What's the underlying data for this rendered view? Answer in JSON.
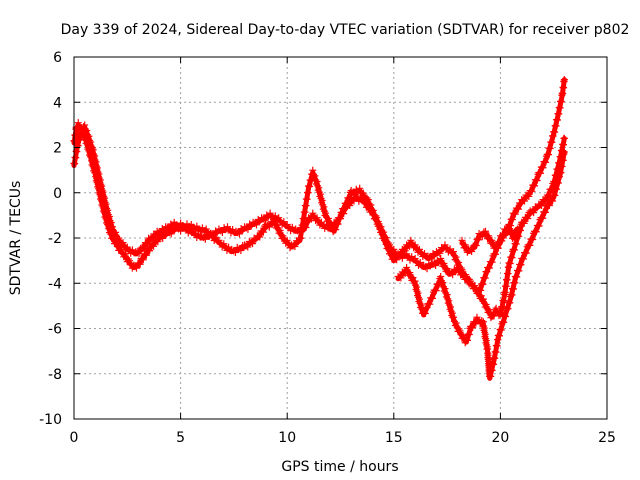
{
  "chart_data": {
    "type": "scatter",
    "title": "Day 339 of 2024, Sidereal Day-to-day VTEC variation (SDTVAR) for receiver p802",
    "xlabel": "GPS time / hours",
    "ylabel": "SDTVAR / TECUs",
    "xlim": [
      0,
      25
    ],
    "ylim": [
      -10,
      6
    ],
    "xticks": [
      0,
      5,
      10,
      15,
      20,
      25
    ],
    "yticks": [
      -10,
      -8,
      -6,
      -4,
      -2,
      0,
      2,
      4,
      6
    ],
    "grid": true,
    "marker": "+",
    "color": "#ff0000",
    "series": [
      {
        "name": "main-track",
        "points": [
          [
            0.0,
            2.2
          ],
          [
            0.1,
            2.8
          ],
          [
            0.2,
            3.0
          ],
          [
            0.4,
            2.7
          ],
          [
            0.6,
            2.2
          ],
          [
            0.8,
            1.5
          ],
          [
            1.0,
            0.8
          ],
          [
            1.2,
            0.0
          ],
          [
            1.4,
            -0.8
          ],
          [
            1.6,
            -1.5
          ],
          [
            1.8,
            -2.0
          ],
          [
            2.0,
            -2.3
          ],
          [
            2.2,
            -2.6
          ],
          [
            2.4,
            -2.8
          ],
          [
            2.6,
            -3.1
          ],
          [
            2.8,
            -3.3
          ],
          [
            3.0,
            -3.2
          ],
          [
            3.3,
            -2.8
          ],
          [
            3.6,
            -2.4
          ],
          [
            4.0,
            -2.0
          ],
          [
            4.4,
            -1.8
          ],
          [
            4.8,
            -1.6
          ],
          [
            5.2,
            -1.6
          ],
          [
            5.6,
            -1.8
          ],
          [
            6.0,
            -2.0
          ],
          [
            6.4,
            -1.9
          ],
          [
            6.8,
            -1.7
          ],
          [
            7.2,
            -1.6
          ],
          [
            7.6,
            -1.8
          ],
          [
            8.0,
            -1.6
          ],
          [
            8.4,
            -1.4
          ],
          [
            8.8,
            -1.2
          ],
          [
            9.2,
            -1.0
          ],
          [
            9.6,
            -1.2
          ],
          [
            10.0,
            -1.5
          ],
          [
            10.4,
            -1.7
          ],
          [
            10.8,
            -1.6
          ],
          [
            11.0,
            -1.2
          ],
          [
            11.2,
            -1.0
          ],
          [
            11.6,
            -1.4
          ],
          [
            12.0,
            -1.6
          ],
          [
            12.4,
            -1.2
          ],
          [
            12.8,
            -0.6
          ],
          [
            13.0,
            -0.4
          ],
          [
            13.2,
            -0.2
          ],
          [
            13.6,
            -0.4
          ],
          [
            14.0,
            -0.9
          ],
          [
            14.4,
            -1.6
          ],
          [
            14.8,
            -2.4
          ],
          [
            15.2,
            -2.8
          ],
          [
            15.6,
            -2.8
          ],
          [
            16.0,
            -3.0
          ],
          [
            16.4,
            -3.3
          ],
          [
            16.8,
            -3.2
          ],
          [
            17.2,
            -3.0
          ],
          [
            17.6,
            -3.6
          ],
          [
            18.0,
            -3.4
          ],
          [
            18.4,
            -3.8
          ],
          [
            18.8,
            -4.2
          ],
          [
            19.2,
            -4.8
          ],
          [
            19.6,
            -5.5
          ],
          [
            19.8,
            -5.2
          ],
          [
            20.0,
            -5.4
          ],
          [
            20.2,
            -4.5
          ],
          [
            20.4,
            -3.2
          ],
          [
            20.6,
            -2.6
          ],
          [
            20.8,
            -2.0
          ],
          [
            21.0,
            -1.4
          ],
          [
            21.4,
            -0.9
          ],
          [
            21.8,
            -0.6
          ],
          [
            22.2,
            -0.2
          ],
          [
            22.5,
            0.4
          ],
          [
            22.8,
            1.5
          ],
          [
            23.0,
            2.4
          ]
        ]
      },
      {
        "name": "upper-track",
        "points": [
          [
            0.0,
            1.2
          ],
          [
            0.15,
            2.0
          ],
          [
            0.3,
            2.6
          ],
          [
            0.5,
            2.9
          ],
          [
            0.7,
            2.4
          ],
          [
            0.9,
            1.8
          ],
          [
            1.1,
            1.0
          ],
          [
            1.3,
            0.2
          ],
          [
            1.5,
            -0.6
          ],
          [
            1.8,
            -1.6
          ],
          [
            2.1,
            -2.1
          ],
          [
            2.5,
            -2.5
          ],
          [
            2.9,
            -2.7
          ],
          [
            3.2,
            -2.5
          ],
          [
            3.5,
            -2.1
          ],
          [
            3.9,
            -1.8
          ],
          [
            4.3,
            -1.6
          ],
          [
            4.7,
            -1.4
          ],
          [
            5.5,
            -1.5
          ],
          [
            6.2,
            -1.7
          ],
          [
            6.8,
            -2.2
          ],
          [
            7.4,
            -2.6
          ],
          [
            8.0,
            -2.4
          ],
          [
            8.6,
            -2.0
          ],
          [
            9.0,
            -1.5
          ],
          [
            9.4,
            -1.3
          ],
          [
            9.8,
            -2.0
          ],
          [
            10.2,
            -2.4
          ],
          [
            10.6,
            -2.1
          ],
          [
            11.0,
            0.2
          ],
          [
            11.2,
            0.9
          ],
          [
            11.4,
            0.4
          ],
          [
            11.8,
            -1.0
          ],
          [
            12.2,
            -1.7
          ],
          [
            12.6,
            -0.8
          ],
          [
            13.0,
            0.0
          ],
          [
            13.4,
            0.1
          ],
          [
            13.8,
            -0.4
          ],
          [
            14.2,
            -1.2
          ],
          [
            14.6,
            -2.2
          ],
          [
            15.0,
            -3.0
          ],
          [
            15.4,
            -2.6
          ],
          [
            15.8,
            -2.2
          ],
          [
            16.2,
            -2.6
          ],
          [
            16.6,
            -2.9
          ],
          [
            17.0,
            -2.7
          ],
          [
            17.4,
            -2.4
          ],
          [
            17.8,
            -2.7
          ],
          [
            18.2,
            -3.5
          ],
          [
            18.6,
            -4.0
          ],
          [
            19.0,
            -4.4
          ],
          [
            19.4,
            -3.4
          ],
          [
            19.7,
            -2.8
          ],
          [
            20.0,
            -2.0
          ],
          [
            20.3,
            -1.8
          ],
          [
            20.6,
            -1.0
          ],
          [
            21.0,
            -0.4
          ],
          [
            21.4,
            0.0
          ],
          [
            21.8,
            0.8
          ],
          [
            22.2,
            1.6
          ],
          [
            22.5,
            2.6
          ],
          [
            22.7,
            3.4
          ],
          [
            22.9,
            4.3
          ],
          [
            23.0,
            5.0
          ]
        ]
      },
      {
        "name": "lower-track",
        "points": [
          [
            15.2,
            -3.8
          ],
          [
            15.6,
            -3.4
          ],
          [
            16.0,
            -4.0
          ],
          [
            16.2,
            -4.8
          ],
          [
            16.4,
            -5.4
          ],
          [
            16.6,
            -5.0
          ],
          [
            16.9,
            -4.4
          ],
          [
            17.2,
            -3.8
          ],
          [
            17.5,
            -4.6
          ],
          [
            17.8,
            -5.6
          ],
          [
            18.1,
            -6.2
          ],
          [
            18.4,
            -6.6
          ],
          [
            18.6,
            -6.0
          ],
          [
            18.9,
            -5.6
          ],
          [
            19.2,
            -5.8
          ],
          [
            19.4,
            -7.0
          ],
          [
            19.5,
            -8.2
          ],
          [
            19.7,
            -7.4
          ],
          [
            19.9,
            -6.4
          ],
          [
            20.1,
            -5.8
          ],
          [
            20.3,
            -5.2
          ],
          [
            20.5,
            -4.6
          ],
          [
            20.7,
            -3.8
          ],
          [
            21.0,
            -3.0
          ],
          [
            21.3,
            -2.4
          ],
          [
            21.6,
            -1.8
          ],
          [
            21.9,
            -1.2
          ],
          [
            22.2,
            -0.6
          ],
          [
            22.5,
            -0.2
          ],
          [
            22.8,
            0.8
          ],
          [
            23.0,
            1.8
          ]
        ]
      },
      {
        "name": "hump-track",
        "points": [
          [
            18.2,
            -2.2
          ],
          [
            18.5,
            -2.6
          ],
          [
            18.8,
            -2.4
          ],
          [
            19.0,
            -1.9
          ],
          [
            19.3,
            -1.8
          ],
          [
            19.6,
            -2.2
          ],
          [
            19.8,
            -2.5
          ],
          [
            20.0,
            -2.2
          ],
          [
            20.2,
            -1.7
          ],
          [
            20.4,
            -1.5
          ],
          [
            20.6,
            -2.0
          ],
          [
            20.8,
            -1.6
          ]
        ]
      }
    ]
  }
}
